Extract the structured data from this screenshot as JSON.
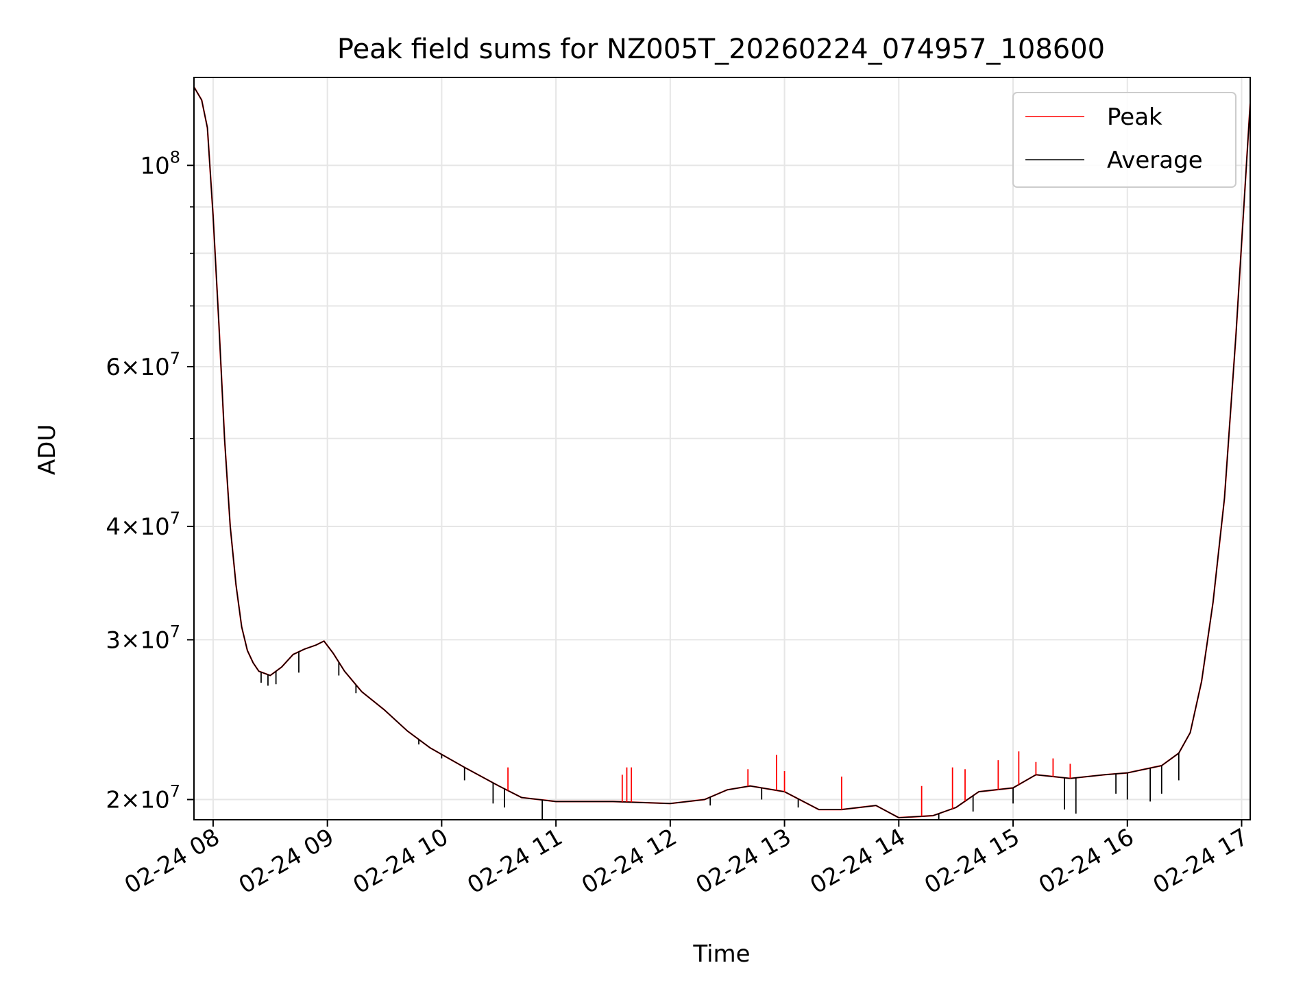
{
  "chart_data": {
    "type": "line",
    "title": "Peak field sums for NZ005T_20260224_074957_108600",
    "xlabel": "Time",
    "ylabel": "ADU",
    "yscale": "log",
    "ylim": [
      19000000,
      125000000
    ],
    "xlim_hours": [
      7.8325,
      17.075
    ],
    "grid": true,
    "legend_position": "upper right",
    "x_ticks": [
      {
        "hour": 8,
        "label": "02-24 08"
      },
      {
        "hour": 9,
        "label": "02-24 09"
      },
      {
        "hour": 10,
        "label": "02-24 10"
      },
      {
        "hour": 11,
        "label": "02-24 11"
      },
      {
        "hour": 12,
        "label": "02-24 12"
      },
      {
        "hour": 13,
        "label": "02-24 13"
      },
      {
        "hour": 14,
        "label": "02-24 14"
      },
      {
        "hour": 15,
        "label": "02-24 15"
      },
      {
        "hour": 16,
        "label": "02-24 16"
      },
      {
        "hour": 17,
        "label": "02-24 17"
      }
    ],
    "y_ticks": [
      {
        "value": 20000000,
        "mantissa": "2×",
        "base": "10",
        "exp": "7"
      },
      {
        "value": 30000000,
        "mantissa": "3×",
        "base": "10",
        "exp": "7"
      },
      {
        "value": 40000000,
        "mantissa": "4×",
        "base": "10",
        "exp": "7"
      },
      {
        "value": 60000000,
        "mantissa": "6×",
        "base": "10",
        "exp": "7"
      },
      {
        "value": 100000000,
        "mantissa": "",
        "base": "10",
        "exp": "8"
      }
    ],
    "y_minor_gridlines": [
      50000000,
      70000000,
      80000000,
      90000000
    ],
    "series": [
      {
        "name": "Peak",
        "color": "#ff0000",
        "x_hours": [
          7.833,
          7.9,
          7.95,
          8.0,
          8.05,
          8.1,
          8.15,
          8.2,
          8.25,
          8.3,
          8.35,
          8.4,
          8.5,
          8.6,
          8.7,
          8.8,
          8.9,
          8.97,
          9.05,
          9.15,
          9.3,
          9.5,
          9.7,
          9.9,
          10.2,
          10.5,
          10.7,
          11.0,
          11.5,
          12.0,
          12.3,
          12.5,
          12.7,
          13.0,
          13.3,
          13.5,
          13.8,
          14.0,
          14.3,
          14.5,
          14.7,
          15.0,
          15.2,
          15.5,
          15.8,
          16.0,
          16.3,
          16.45,
          16.55,
          16.65,
          16.75,
          16.85,
          16.95,
          17.075
        ],
        "values": [
          122000000,
          118000000,
          110000000,
          88000000,
          67000000,
          50000000,
          40000000,
          34500000,
          31000000,
          29200000,
          28300000,
          27700000,
          27400000,
          28000000,
          28900000,
          29300000,
          29600000,
          29900000,
          29000000,
          27700000,
          26300000,
          25100000,
          23800000,
          22800000,
          21700000,
          20700000,
          20100000,
          19900000,
          19900000,
          19800000,
          20000000,
          20500000,
          20700000,
          20400000,
          19500000,
          19500000,
          19700000,
          19100000,
          19200000,
          19600000,
          20400000,
          20600000,
          21300000,
          21100000,
          21300000,
          21400000,
          21800000,
          22500000,
          23700000,
          27000000,
          33000000,
          43000000,
          65000000,
          117000000
        ]
      },
      {
        "name": "Average",
        "color": "#000000",
        "x_hours": [
          7.833,
          7.9,
          7.95,
          8.0,
          8.05,
          8.1,
          8.15,
          8.2,
          8.25,
          8.3,
          8.35,
          8.4,
          8.5,
          8.6,
          8.7,
          8.8,
          8.9,
          8.97,
          9.05,
          9.15,
          9.3,
          9.5,
          9.7,
          9.9,
          10.2,
          10.5,
          10.7,
          11.0,
          11.5,
          12.0,
          12.3,
          12.5,
          12.7,
          13.0,
          13.3,
          13.5,
          13.8,
          14.0,
          14.3,
          14.5,
          14.7,
          15.0,
          15.2,
          15.5,
          15.8,
          16.0,
          16.3,
          16.45,
          16.55,
          16.65,
          16.75,
          16.85,
          16.95,
          17.075
        ],
        "values": [
          122000000,
          118000000,
          110000000,
          88000000,
          67000000,
          50000000,
          40000000,
          34500000,
          31000000,
          29200000,
          28300000,
          27700000,
          27400000,
          28000000,
          28900000,
          29300000,
          29600000,
          29900000,
          29000000,
          27700000,
          26300000,
          25100000,
          23800000,
          22800000,
          21700000,
          20700000,
          20100000,
          19900000,
          19900000,
          19800000,
          20000000,
          20500000,
          20700000,
          20400000,
          19500000,
          19500000,
          19700000,
          19100000,
          19200000,
          19600000,
          20400000,
          20600000,
          21300000,
          21100000,
          21300000,
          21400000,
          21800000,
          22500000,
          23700000,
          27000000,
          33000000,
          43000000,
          65000000,
          117000000
        ]
      }
    ],
    "peak_spikes": [
      {
        "hour": 10.58,
        "value": 21700000
      },
      {
        "hour": 11.58,
        "value": 21300000
      },
      {
        "hour": 11.62,
        "value": 21700000
      },
      {
        "hour": 11.66,
        "value": 21700000
      },
      {
        "hour": 12.68,
        "value": 21600000
      },
      {
        "hour": 12.93,
        "value": 22400000
      },
      {
        "hour": 13.0,
        "value": 21500000
      },
      {
        "hour": 13.5,
        "value": 21200000
      },
      {
        "hour": 14.2,
        "value": 20700000
      },
      {
        "hour": 14.47,
        "value": 21700000
      },
      {
        "hour": 14.58,
        "value": 21600000
      },
      {
        "hour": 14.87,
        "value": 22100000
      },
      {
        "hour": 15.05,
        "value": 22600000
      },
      {
        "hour": 15.2,
        "value": 22000000
      },
      {
        "hour": 15.35,
        "value": 22200000
      },
      {
        "hour": 15.5,
        "value": 21900000
      }
    ],
    "average_dips": [
      {
        "hour": 8.42,
        "value": 26900000
      },
      {
        "hour": 8.48,
        "value": 26700000
      },
      {
        "hour": 8.55,
        "value": 26800000
      },
      {
        "hour": 8.75,
        "value": 27600000
      },
      {
        "hour": 9.1,
        "value": 27400000
      },
      {
        "hour": 9.25,
        "value": 26200000
      },
      {
        "hour": 9.6,
        "value": 24400000
      },
      {
        "hour": 9.8,
        "value": 23000000
      },
      {
        "hour": 10.0,
        "value": 22200000
      },
      {
        "hour": 10.2,
        "value": 21000000
      },
      {
        "hour": 10.45,
        "value": 19800000
      },
      {
        "hour": 10.55,
        "value": 19600000
      },
      {
        "hour": 10.88,
        "value": 18900000
      },
      {
        "hour": 12.35,
        "value": 19700000
      },
      {
        "hour": 12.8,
        "value": 20000000
      },
      {
        "hour": 13.12,
        "value": 19600000
      },
      {
        "hour": 14.35,
        "value": 18900000
      },
      {
        "hour": 14.65,
        "value": 19400000
      },
      {
        "hour": 15.0,
        "value": 19800000
      },
      {
        "hour": 15.45,
        "value": 19500000
      },
      {
        "hour": 15.55,
        "value": 19300000
      },
      {
        "hour": 15.9,
        "value": 20300000
      },
      {
        "hour": 16.0,
        "value": 20000000
      },
      {
        "hour": 16.2,
        "value": 19900000
      },
      {
        "hour": 16.3,
        "value": 20300000
      },
      {
        "hour": 16.45,
        "value": 21000000
      }
    ]
  }
}
